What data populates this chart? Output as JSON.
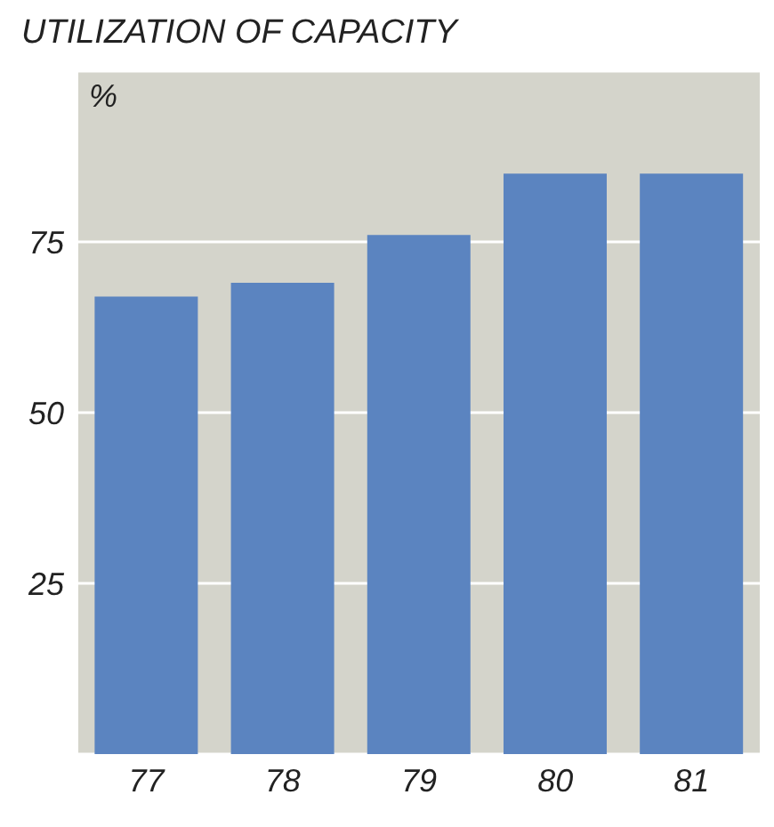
{
  "chart_data": {
    "type": "bar",
    "title": "UTILIZATION OF CAPACITY",
    "ylabel": "%",
    "categories": [
      "77",
      "78",
      "79",
      "80",
      "81"
    ],
    "values": [
      67,
      69,
      76,
      85,
      85
    ],
    "color": "#5b84c0",
    "ylim": [
      0,
      100
    ],
    "yticks": [
      25,
      50,
      75
    ],
    "grid": "y"
  }
}
